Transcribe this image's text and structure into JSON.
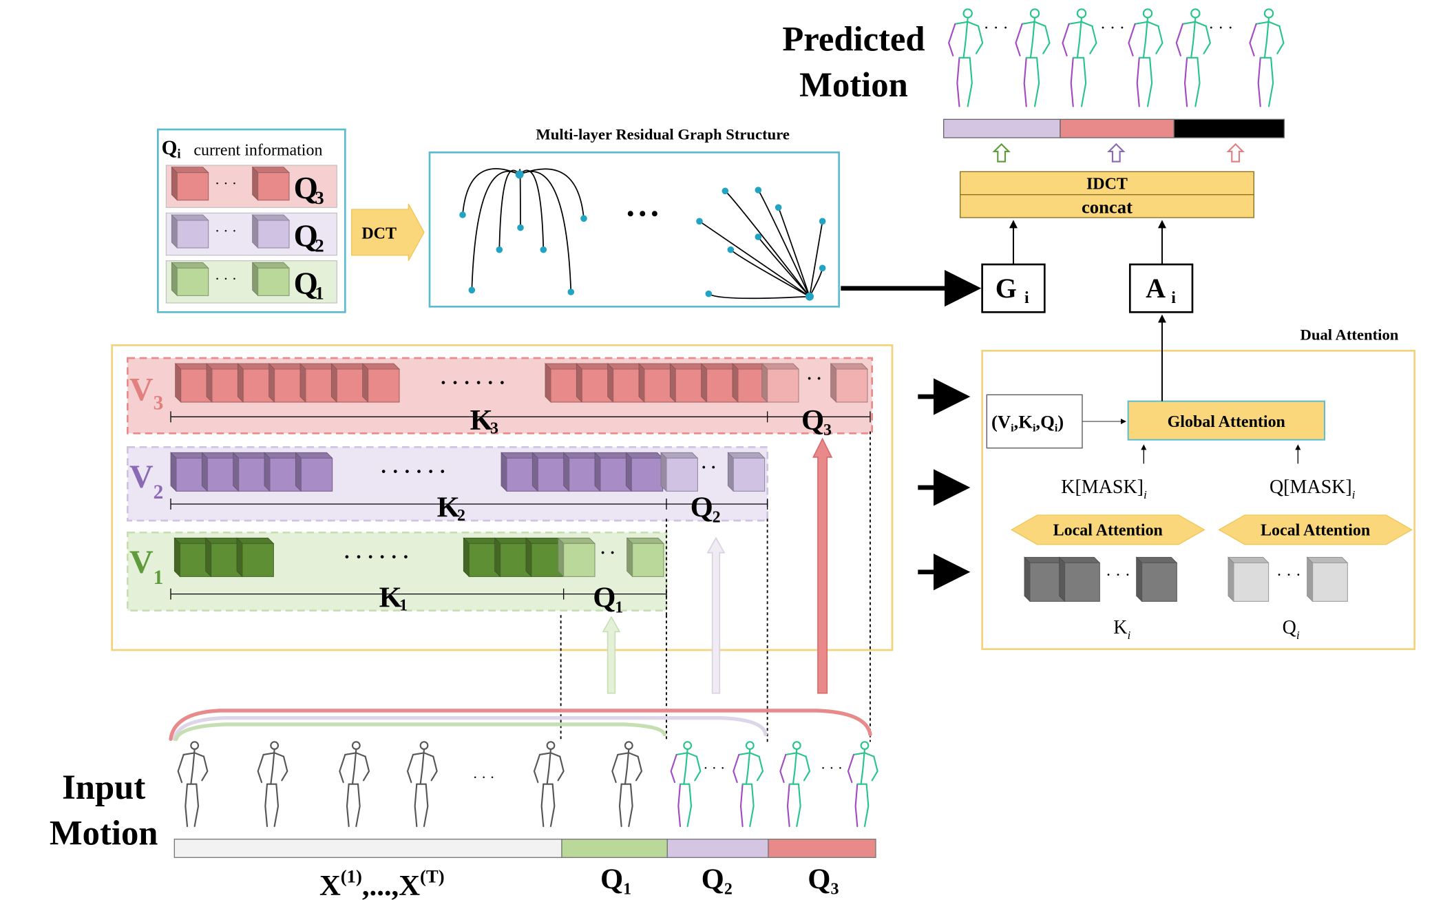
{
  "colors": {
    "red": "#e88a8a",
    "red_dark": "#d9686a",
    "red_light": "#f6d0d0",
    "purple": "#a88cc6",
    "purple_dark": "#8c6cab",
    "purple_light": "#ece6f4",
    "green": "#5e8f34",
    "green_dark": "#497226",
    "green_light": "#e4f0d8",
    "teal_border": "#5bbcd0",
    "yellow_box": "#f9d77a",
    "yellow_border": "#f2d27b",
    "node": "#23a3c2",
    "green_text": "#5e9b3a",
    "purple_text": "#8a69b5",
    "red_text": "#e27f7f"
  },
  "predicted_motion": {
    "line1": "Predicted",
    "line2": "Motion"
  },
  "input_motion": {
    "line1": "Input",
    "line2": "Motion"
  },
  "qi_panel": {
    "title_symbol": "Q",
    "title_sub": "i",
    "title_caption": "current information",
    "rows": [
      {
        "label": "Q",
        "sub": "3",
        "color": "red"
      },
      {
        "label": "Q",
        "sub": "2",
        "color": "purple"
      },
      {
        "label": "Q",
        "sub": "1",
        "color": "green"
      }
    ],
    "dots": "· · ·"
  },
  "dct_label": "DCT",
  "graph_title": "Multi-layer Residual Graph Structure",
  "graph_ellipsis": "• • •",
  "idct_label": "IDCT",
  "concat_label": "concat",
  "g_box": {
    "symbol": "G",
    "sub": "i"
  },
  "a_box": {
    "symbol": "A",
    "sub": "i"
  },
  "dual_attention_title": "Dual Attention",
  "vkq_label": "(Vᵢ,Kᵢ,Qᵢ)",
  "vkq_parts": {
    "open": "(V",
    "sub1": "i",
    "mid1": ",K",
    "sub2": "i",
    "mid2": ",Q",
    "sub3": "i",
    "close": ")"
  },
  "global_attention": "Global Attention",
  "k_mask": {
    "text": "K[MASK]",
    "sub": "i"
  },
  "q_mask": {
    "text": "Q[MASK]",
    "sub": "i"
  },
  "local_attention_left": "Local Attention",
  "local_attention_right": "Local Attention",
  "k_i_label": {
    "text": "K",
    "sub": "i"
  },
  "q_i_label": {
    "text": "Q",
    "sub": "i"
  },
  "v_rows": [
    {
      "v": "V",
      "vsub": "3",
      "k": "K",
      "ksub": "3",
      "q": "Q",
      "qsub": "3"
    },
    {
      "v": "V",
      "vsub": "2",
      "k": "K",
      "ksub": "2",
      "q": "Q",
      "qsub": "2"
    },
    {
      "v": "V",
      "vsub": "1",
      "k": "K",
      "ksub": "1",
      "q": "Q",
      "qsub": "1"
    }
  ],
  "ellipsis_long": "· · · · · ·",
  "ellipsis_short": "· ·",
  "bottom_labels": {
    "x_seq": {
      "x1": "X",
      "sup1": "(1)",
      "mid": ",...,",
      "x2": "X",
      "sup2": "(T)"
    },
    "q1": {
      "text": "Q",
      "sub": "1"
    },
    "q2": {
      "text": "Q",
      "sub": "2"
    },
    "q3": {
      "text": "Q",
      "sub": "3"
    }
  },
  "skeleton_ellipsis": "· · ·"
}
